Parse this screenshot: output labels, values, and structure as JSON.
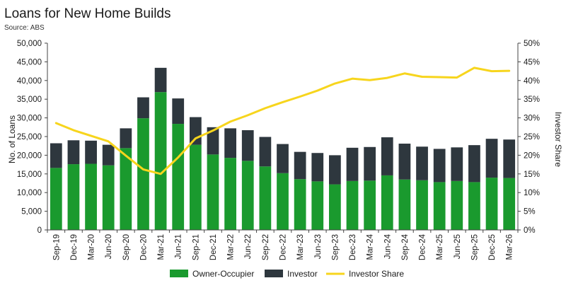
{
  "colors": {
    "owner_occupier": "#1a9a2e",
    "investor": "#2e373e",
    "investor_share": "#f7d51d",
    "axis": "#444444",
    "text": "#1a1a1a"
  },
  "chart_data": {
    "type": "bar",
    "title": "Loans for New Home Builds",
    "subtitle": "Source: ABS",
    "ylabel": "No. of Loans",
    "y2label": "Investor Share",
    "ylim": [
      0,
      50000
    ],
    "y2lim": [
      0,
      50
    ],
    "yticks": [
      "0",
      "5,000",
      "10,000",
      "15,000",
      "20,000",
      "25,000",
      "30,000",
      "35,000",
      "40,000",
      "45,000",
      "50,000"
    ],
    "y2ticks": [
      "0%",
      "5%",
      "10%",
      "15%",
      "20%",
      "25%",
      "30%",
      "35%",
      "40%",
      "45%",
      "50%"
    ],
    "stacked": true,
    "grid": false,
    "legend_position": "bottom",
    "categories": [
      "Sep-19",
      "Dec-19",
      "Mar-20",
      "Jun-20",
      "Sep-20",
      "Dec-20",
      "Mar-21",
      "Jun-21",
      "Sep-21",
      "Dec-21",
      "Mar-22",
      "Jun-22",
      "Sep-22",
      "Dec-22",
      "Mar-23",
      "Jun-23",
      "Sep-23",
      "Dec-23",
      "Mar-24",
      "Jun-24",
      "Sep-24",
      "Dec-24",
      "Mar-25",
      "Jun-25",
      "Sep-25",
      "Dec-25",
      "Mar-26"
    ],
    "series": [
      {
        "name": "Owner-Occupier",
        "type": "bar",
        "axis": "left",
        "values": [
          16600,
          17600,
          17700,
          17300,
          21900,
          29900,
          36900,
          28400,
          22800,
          20200,
          19300,
          18500,
          17000,
          15200,
          13600,
          13000,
          12200,
          13100,
          13200,
          14600,
          13500,
          13300,
          12800,
          13100,
          12800,
          14000,
          13900
        ]
      },
      {
        "name": "Investor",
        "type": "bar",
        "axis": "left",
        "values": [
          6600,
          6400,
          6200,
          5500,
          5300,
          5600,
          6500,
          6800,
          7400,
          7300,
          7900,
          8200,
          7900,
          7800,
          7300,
          7600,
          7800,
          8900,
          9000,
          10200,
          9600,
          9000,
          8900,
          9000,
          9900,
          10400,
          10300
        ]
      },
      {
        "name": "Investor Share",
        "type": "line",
        "axis": "right",
        "values": [
          28.6,
          26.7,
          25.2,
          23.7,
          19.9,
          16.2,
          15.0,
          19.4,
          24.5,
          26.6,
          29.0,
          30.7,
          32.6,
          34.2,
          35.7,
          37.3,
          39.2,
          40.5,
          40.1,
          40.7,
          41.9,
          41.0,
          40.9,
          40.8,
          43.4,
          42.5,
          42.6
        ]
      }
    ]
  }
}
